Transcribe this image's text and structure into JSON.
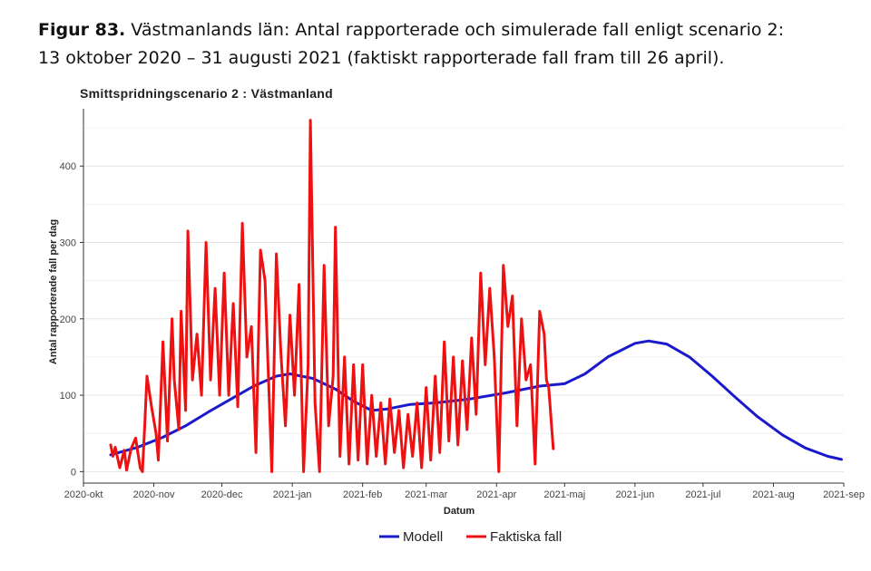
{
  "caption": {
    "figure_label": "Figur 83.",
    "text_line1": " Västmanlands län: Antal rapporterade och simulerade fall enligt scenario 2:",
    "text_line2": "13 oktober 2020 – 31 augusti 2021 (faktiskt rapporterade fall fram till 26 april)."
  },
  "chart_data": {
    "type": "line",
    "title": "Smittspridningscenario 2 : Västmanland",
    "xlabel": "Datum",
    "ylabel": "Antal rapporterade fall per dag",
    "x_ticks": [
      "2020-okt",
      "2020-nov",
      "2020-dec",
      "2021-jan",
      "2021-feb",
      "2021-mar",
      "2021-apr",
      "2021-maj",
      "2021-jun",
      "2021-jul",
      "2021-aug",
      "2021-sep"
    ],
    "y_ticks": [
      0,
      100,
      200,
      300,
      400
    ],
    "xlim": [
      "2020-10-01",
      "2021-09-01"
    ],
    "ylim": [
      -15,
      475
    ],
    "grid": true,
    "legend_position": "bottom",
    "series": [
      {
        "name": "Modell",
        "color": "#1a1acc",
        "points": [
          [
            "2020-10-13",
            22
          ],
          [
            "2020-10-25",
            32
          ],
          [
            "2020-11-05",
            45
          ],
          [
            "2020-11-15",
            60
          ],
          [
            "2020-11-25",
            78
          ],
          [
            "2020-12-05",
            95
          ],
          [
            "2020-12-15",
            112
          ],
          [
            "2020-12-25",
            125
          ],
          [
            "2020-12-31",
            128
          ],
          [
            "2021-01-10",
            122
          ],
          [
            "2021-01-20",
            108
          ],
          [
            "2021-01-28",
            92
          ],
          [
            "2021-02-05",
            80
          ],
          [
            "2021-02-12",
            82
          ],
          [
            "2021-02-22",
            88
          ],
          [
            "2021-03-05",
            90
          ],
          [
            "2021-03-20",
            95
          ],
          [
            "2021-04-05",
            103
          ],
          [
            "2021-04-20",
            112
          ],
          [
            "2021-05-01",
            115
          ],
          [
            "2021-05-10",
            128
          ],
          [
            "2021-05-20",
            150
          ],
          [
            "2021-06-01",
            168
          ],
          [
            "2021-06-07",
            171
          ],
          [
            "2021-06-15",
            167
          ],
          [
            "2021-06-25",
            150
          ],
          [
            "2021-07-05",
            125
          ],
          [
            "2021-07-15",
            98
          ],
          [
            "2021-07-25",
            72
          ],
          [
            "2021-08-05",
            48
          ],
          [
            "2021-08-15",
            31
          ],
          [
            "2021-08-25",
            20
          ],
          [
            "2021-08-31",
            16
          ]
        ]
      },
      {
        "name": "Faktiska fall",
        "color": "#ee1111",
        "points": [
          [
            "2020-10-13",
            35
          ],
          [
            "2020-10-14",
            20
          ],
          [
            "2020-10-15",
            32
          ],
          [
            "2020-10-17",
            5
          ],
          [
            "2020-10-19",
            28
          ],
          [
            "2020-10-20",
            2
          ],
          [
            "2020-10-22",
            30
          ],
          [
            "2020-10-24",
            44
          ],
          [
            "2020-10-26",
            5
          ],
          [
            "2020-10-27",
            0
          ],
          [
            "2020-10-28",
            60
          ],
          [
            "2020-10-29",
            125
          ],
          [
            "2020-10-31",
            85
          ],
          [
            "2020-11-02",
            50
          ],
          [
            "2020-11-03",
            15
          ],
          [
            "2020-11-05",
            170
          ],
          [
            "2020-11-07",
            40
          ],
          [
            "2020-11-09",
            200
          ],
          [
            "2020-11-10",
            120
          ],
          [
            "2020-11-12",
            55
          ],
          [
            "2020-11-13",
            210
          ],
          [
            "2020-11-15",
            80
          ],
          [
            "2020-11-16",
            315
          ],
          [
            "2020-11-18",
            120
          ],
          [
            "2020-11-20",
            180
          ],
          [
            "2020-11-22",
            100
          ],
          [
            "2020-11-24",
            300
          ],
          [
            "2020-11-26",
            120
          ],
          [
            "2020-11-28",
            240
          ],
          [
            "2020-11-30",
            100
          ],
          [
            "2020-12-02",
            260
          ],
          [
            "2020-12-04",
            100
          ],
          [
            "2020-12-06",
            220
          ],
          [
            "2020-12-08",
            85
          ],
          [
            "2020-12-10",
            325
          ],
          [
            "2020-12-12",
            150
          ],
          [
            "2020-12-14",
            190
          ],
          [
            "2020-12-16",
            25
          ],
          [
            "2020-12-18",
            290
          ],
          [
            "2020-12-20",
            250
          ],
          [
            "2020-12-23",
            0
          ],
          [
            "2020-12-25",
            285
          ],
          [
            "2020-12-27",
            155
          ],
          [
            "2020-12-29",
            60
          ],
          [
            "2020-12-31",
            205
          ],
          [
            "2021-01-02",
            100
          ],
          [
            "2021-01-04",
            245
          ],
          [
            "2021-01-06",
            0
          ],
          [
            "2021-01-08",
            140
          ],
          [
            "2021-01-09",
            460
          ],
          [
            "2021-01-11",
            90
          ],
          [
            "2021-01-13",
            0
          ],
          [
            "2021-01-15",
            270
          ],
          [
            "2021-01-17",
            60
          ],
          [
            "2021-01-19",
            125
          ],
          [
            "2021-01-20",
            320
          ],
          [
            "2021-01-22",
            20
          ],
          [
            "2021-01-24",
            150
          ],
          [
            "2021-01-26",
            10
          ],
          [
            "2021-01-28",
            140
          ],
          [
            "2021-01-30",
            15
          ],
          [
            "2021-02-01",
            140
          ],
          [
            "2021-02-03",
            10
          ],
          [
            "2021-02-05",
            100
          ],
          [
            "2021-02-07",
            20
          ],
          [
            "2021-02-09",
            90
          ],
          [
            "2021-02-11",
            10
          ],
          [
            "2021-02-13",
            95
          ],
          [
            "2021-02-15",
            25
          ],
          [
            "2021-02-17",
            80
          ],
          [
            "2021-02-19",
            5
          ],
          [
            "2021-02-21",
            75
          ],
          [
            "2021-02-23",
            20
          ],
          [
            "2021-02-25",
            90
          ],
          [
            "2021-02-27",
            5
          ],
          [
            "2021-03-01",
            110
          ],
          [
            "2021-03-03",
            15
          ],
          [
            "2021-03-05",
            125
          ],
          [
            "2021-03-07",
            25
          ],
          [
            "2021-03-09",
            170
          ],
          [
            "2021-03-11",
            40
          ],
          [
            "2021-03-13",
            150
          ],
          [
            "2021-03-15",
            35
          ],
          [
            "2021-03-17",
            145
          ],
          [
            "2021-03-19",
            55
          ],
          [
            "2021-03-21",
            175
          ],
          [
            "2021-03-23",
            75
          ],
          [
            "2021-03-25",
            260
          ],
          [
            "2021-03-27",
            140
          ],
          [
            "2021-03-29",
            240
          ],
          [
            "2021-03-31",
            150
          ],
          [
            "2021-04-02",
            0
          ],
          [
            "2021-04-04",
            270
          ],
          [
            "2021-04-06",
            190
          ],
          [
            "2021-04-08",
            230
          ],
          [
            "2021-04-10",
            60
          ],
          [
            "2021-04-12",
            200
          ],
          [
            "2021-04-14",
            120
          ],
          [
            "2021-04-16",
            140
          ],
          [
            "2021-04-18",
            10
          ],
          [
            "2021-04-20",
            210
          ],
          [
            "2021-04-22",
            180
          ],
          [
            "2021-04-23",
            120
          ],
          [
            "2021-04-24",
            110
          ],
          [
            "2021-04-26",
            30
          ]
        ]
      }
    ]
  }
}
